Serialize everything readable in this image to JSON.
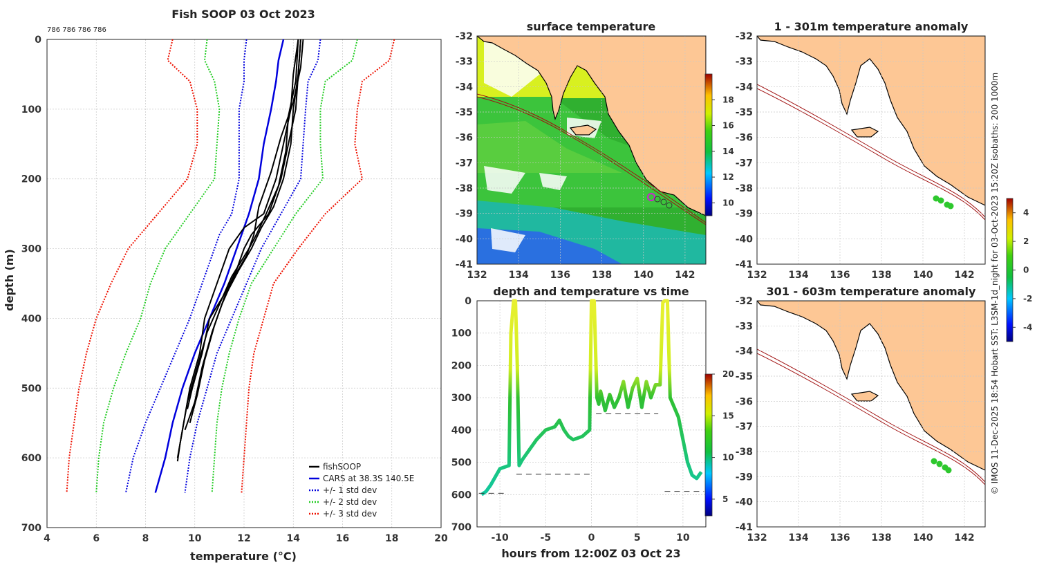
{
  "footer_text": "© IMOS 11-Dec-2025 18:54 Hobart SST: L3SM-1d_night for 03-Oct-2023 15:20Z isobaths: 200  1000m",
  "chart_data": [
    {
      "id": "profile",
      "type": "line",
      "title": "Fish SOOP 03 Oct 2023",
      "subtitle": "786 786 786 786",
      "xlabel": "temperature (°C)",
      "ylabel": "depth (m)",
      "xlim": [
        4,
        20
      ],
      "ylim": [
        0,
        700
      ],
      "xticks": [
        "4",
        "6",
        "8",
        "10",
        "12",
        "14",
        "16",
        "18",
        "20"
      ],
      "yticks": [
        "0",
        "100",
        "200",
        "300",
        "400",
        "500",
        "600",
        "700"
      ],
      "legend": [
        "fishSOOP",
        "CARS at 38.3S 140.5E",
        "+/- 1 std dev",
        "+/- 2 std dev",
        "+/- 3 std dev"
      ],
      "legend_position": "bottom-right",
      "series": [
        {
          "name": "CARS at 38.3S 140.5E",
          "color": "#0000dd",
          "depth": [
            0,
            30,
            60,
            100,
            150,
            200,
            250,
            300,
            350,
            400,
            450,
            500,
            550,
            600,
            650
          ],
          "temp": [
            13.6,
            13.4,
            13.3,
            13.1,
            12.8,
            12.6,
            12.2,
            11.7,
            11.2,
            10.6,
            10.0,
            9.5,
            9.1,
            8.8,
            8.4
          ]
        },
        {
          "name": "-1 std",
          "color": "#0000dd",
          "depth": [
            0,
            30,
            60,
            100,
            150,
            200,
            250,
            280,
            300,
            350,
            400,
            450,
            500,
            550,
            600,
            650
          ],
          "temp": [
            12.1,
            12.0,
            12.0,
            11.8,
            11.8,
            11.8,
            11.5,
            11.0,
            10.8,
            10.3,
            9.8,
            9.2,
            8.6,
            8.0,
            7.5,
            7.2
          ]
        },
        {
          "name": "+1 std",
          "color": "#0000dd",
          "depth": [
            0,
            30,
            60,
            100,
            150,
            200,
            250,
            300,
            350,
            400,
            450,
            500,
            550,
            600,
            650
          ],
          "temp": [
            15.1,
            15.0,
            14.6,
            14.5,
            14.4,
            14.3,
            13.5,
            12.7,
            12.1,
            11.5,
            10.9,
            10.5,
            10.1,
            9.8,
            9.6
          ]
        },
        {
          "name": "-2 std",
          "color": "#22cc22",
          "depth": [
            0,
            30,
            60,
            100,
            150,
            200,
            250,
            300,
            350,
            400,
            450,
            500,
            550,
            600,
            650
          ],
          "temp": [
            10.5,
            10.4,
            10.8,
            11.0,
            10.9,
            10.8,
            9.8,
            8.8,
            8.2,
            7.8,
            7.2,
            6.7,
            6.3,
            6.1,
            6.0
          ]
        },
        {
          "name": "+2 std",
          "color": "#22cc22",
          "depth": [
            0,
            30,
            60,
            100,
            150,
            200,
            250,
            300,
            350,
            400,
            450,
            500,
            550,
            600,
            650
          ],
          "temp": [
            16.6,
            16.4,
            15.3,
            15.1,
            15.1,
            15.2,
            14.1,
            13.2,
            12.3,
            11.8,
            11.4,
            11.1,
            10.9,
            10.8,
            10.7
          ]
        },
        {
          "name": "-3 std",
          "color": "#ee1100",
          "depth": [
            0,
            30,
            60,
            100,
            150,
            200,
            250,
            300,
            350,
            400,
            450,
            500,
            550,
            600,
            650
          ],
          "temp": [
            9.1,
            8.9,
            9.8,
            10.1,
            10.1,
            9.7,
            8.5,
            7.3,
            6.6,
            6.0,
            5.6,
            5.3,
            5.1,
            4.9,
            4.8
          ]
        },
        {
          "name": "+3 std",
          "color": "#ee1100",
          "depth": [
            0,
            30,
            60,
            100,
            150,
            200,
            250,
            300,
            350,
            400,
            450,
            500,
            550,
            600,
            650
          ],
          "temp": [
            18.1,
            17.9,
            16.8,
            16.6,
            16.5,
            16.8,
            15.3,
            14.2,
            13.2,
            12.8,
            12.4,
            12.2,
            12.1,
            12.0,
            11.9
          ]
        },
        {
          "name": "fishSOOP",
          "color": "#000000",
          "profiles": [
            {
              "depth": [
                0,
                50,
                100,
                150,
                200,
                250,
                280,
                300,
                330,
                360,
                400,
                450,
                500,
                530
              ],
              "temp": [
                14.3,
                14.2,
                14.1,
                13.8,
                13.5,
                13.0,
                12.3,
                12.0,
                11.7,
                11.3,
                10.6,
                10.3,
                9.9,
                9.7
              ]
            },
            {
              "depth": [
                0,
                50,
                100,
                150,
                200,
                250,
                270,
                300,
                320,
                360,
                400,
                450,
                500,
                560,
                600
              ],
              "temp": [
                14.2,
                14.0,
                13.9,
                13.6,
                13.3,
                12.8,
                12.0,
                11.4,
                11.2,
                10.8,
                10.4,
                10.2,
                9.8,
                9.5,
                9.3
              ]
            },
            {
              "depth": [
                0,
                40,
                90,
                140,
                190,
                240,
                280,
                310,
                340,
                380,
                420,
                470,
                520,
                560
              ],
              "temp": [
                14.4,
                14.3,
                14.0,
                13.5,
                13.1,
                12.6,
                12.4,
                12.1,
                11.6,
                11.1,
                10.7,
                10.3,
                10.0,
                9.6
              ]
            },
            {
              "depth": [
                0,
                60,
                110,
                160,
                210,
                250,
                280,
                300,
                340,
                380,
                420,
                470,
                520,
                580,
                605
              ],
              "temp": [
                14.2,
                14.1,
                13.8,
                13.7,
                13.4,
                12.9,
                12.5,
                12.2,
                11.5,
                11.0,
                10.5,
                10.1,
                9.7,
                9.4,
                9.3
              ]
            },
            {
              "depth": [
                0,
                50,
                100,
                150,
                200,
                240,
                270,
                300,
                330,
                370,
                410,
                460,
                510,
                550
              ],
              "temp": [
                14.3,
                14.2,
                14.0,
                13.9,
                13.6,
                13.2,
                12.7,
                12.3,
                11.8,
                11.2,
                10.8,
                10.4,
                10.1,
                9.8
              ]
            }
          ]
        }
      ]
    },
    {
      "id": "surface_map",
      "type": "heatmap",
      "title": "surface temperature",
      "xlim": [
        132,
        143
      ],
      "ylim": [
        -41,
        -32
      ],
      "xticks": [
        "132",
        "134",
        "136",
        "138",
        "140",
        "142"
      ],
      "yticks": [
        "-32",
        "-33",
        "-34",
        "-35",
        "-36",
        "-37",
        "-38",
        "-39",
        "-40",
        "-41"
      ],
      "colorbar_ticks": [
        "10",
        "12",
        "14",
        "16",
        "18"
      ],
      "colorbar_range": [
        9,
        20
      ]
    },
    {
      "id": "depth_time",
      "type": "line",
      "title": "depth and temperature vs time",
      "xlabel": "hours from 12:00Z 03 Oct 23",
      "xlim": [
        -12.5,
        12.5
      ],
      "ylim": [
        0,
        700
      ],
      "xticks": [
        "-10",
        "-5",
        "0",
        "5",
        "10"
      ],
      "yticks": [
        "0",
        "100",
        "200",
        "300",
        "400",
        "500",
        "600",
        "700"
      ],
      "colorbar_ticks": [
        "5",
        "10",
        "15",
        "20"
      ],
      "colorbar_range": [
        3,
        20
      ],
      "series": [
        {
          "name": "depth",
          "time": [
            -12,
            -11.5,
            -11,
            -10,
            -9,
            -8.8,
            -8.5,
            -8.3,
            -8.1,
            -7.9,
            -7.5,
            -6,
            -5,
            -4,
            -3.5,
            -3,
            -2.5,
            -2,
            -1,
            -0.2,
            0,
            0.3,
            0.6,
            0.8,
            1,
            1.5,
            2,
            2.5,
            3,
            3.5,
            4,
            4.5,
            5,
            5.5,
            6,
            6.5,
            7,
            7.5,
            7.8,
            8,
            8.3,
            8.6,
            8.9,
            9.2,
            9.5,
            10,
            10.5,
            11,
            11.5,
            12
          ],
          "depth": [
            600,
            590,
            570,
            520,
            510,
            100,
            0,
            0,
            200,
            510,
            490,
            430,
            400,
            390,
            370,
            400,
            420,
            430,
            420,
            400,
            0,
            0,
            300,
            320,
            280,
            340,
            290,
            330,
            300,
            250,
            330,
            270,
            240,
            330,
            250,
            300,
            260,
            260,
            5,
            0,
            0,
            300,
            320,
            340,
            360,
            430,
            500,
            540,
            550,
            530
          ]
        },
        {
          "name": "dashed-depth-segments",
          "segments": [
            {
              "t0": -12.3,
              "t1": -9.5,
              "depth": 596
            },
            {
              "t0": -8.2,
              "t1": -0.2,
              "depth": 537
            },
            {
              "t0": 0.5,
              "t1": 7.3,
              "depth": 350
            },
            {
              "t0": 8,
              "t1": 12.3,
              "depth": 590
            }
          ]
        }
      ]
    },
    {
      "id": "anomaly_1_301",
      "type": "heatmap",
      "title": "1 - 301m temperature anomaly",
      "xlim": [
        132,
        143
      ],
      "ylim": [
        -41,
        -32
      ],
      "xticks": [
        "132",
        "134",
        "136",
        "138",
        "140",
        "142"
      ],
      "yticks": [
        "-32",
        "-33",
        "-34",
        "-35",
        "-36",
        "-37",
        "-38",
        "-39",
        "-40",
        "-41"
      ]
    },
    {
      "id": "anomaly_301_603",
      "type": "heatmap",
      "title": "301 - 603m temperature anomaly",
      "xlim": [
        132,
        143
      ],
      "ylim": [
        -41,
        -32
      ],
      "xticks": [
        "132",
        "134",
        "136",
        "138",
        "140",
        "142"
      ],
      "yticks": [
        "-32",
        "-33",
        "-34",
        "-35",
        "-36",
        "-37",
        "-38",
        "-39",
        "-40",
        "-41"
      ],
      "colorbar_ticks": [
        "4",
        "2",
        "0",
        "-2",
        "-4"
      ],
      "colorbar_range": [
        -5,
        5
      ]
    }
  ]
}
